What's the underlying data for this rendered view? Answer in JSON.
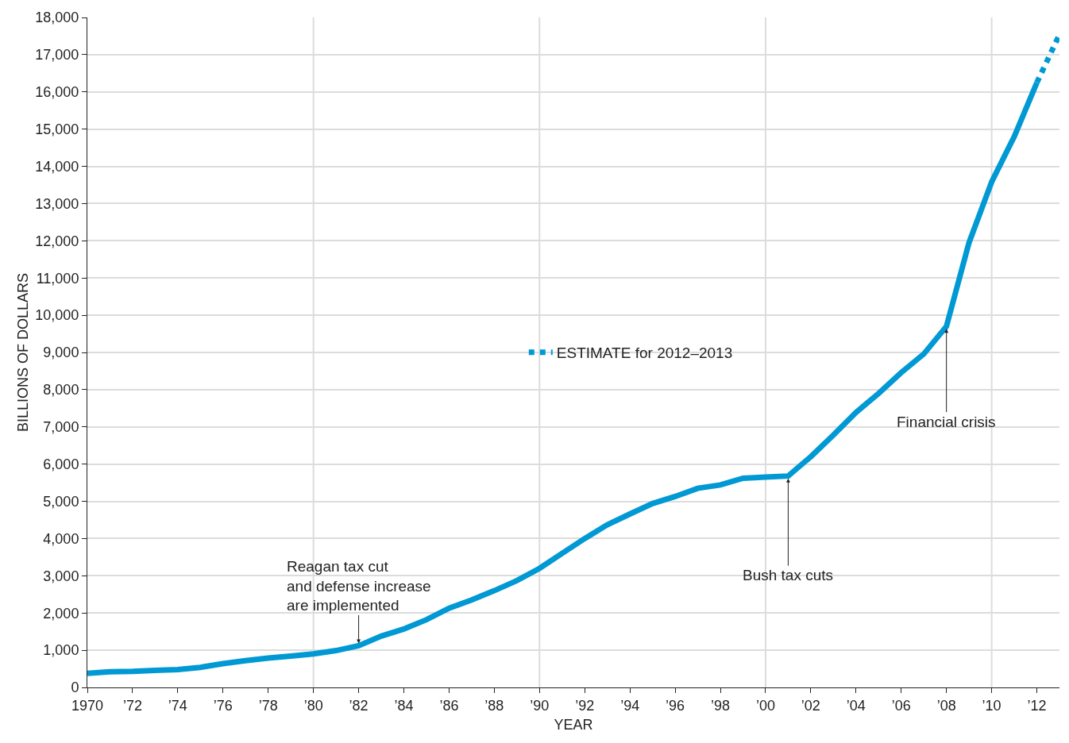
{
  "chart_data": {
    "type": "line",
    "xlabel": "YEAR",
    "ylabel": "BILLIONS OF DOLLARS",
    "xlim": [
      1970,
      2013
    ],
    "ylim": [
      0,
      18000
    ],
    "xticks": [
      1970,
      {
        "value": 1972,
        "label": "’72"
      },
      {
        "value": 1974,
        "label": "’74"
      },
      {
        "value": 1976,
        "label": "’76"
      },
      {
        "value": 1978,
        "label": "’78"
      },
      {
        "value": 1980,
        "label": "’80"
      },
      {
        "value": 1982,
        "label": "’82"
      },
      {
        "value": 1984,
        "label": "’84"
      },
      {
        "value": 1986,
        "label": "’86"
      },
      {
        "value": 1988,
        "label": "’88"
      },
      {
        "value": 1990,
        "label": "’90"
      },
      {
        "value": 1992,
        "label": "’92"
      },
      {
        "value": 1994,
        "label": "’94"
      },
      {
        "value": 1996,
        "label": "’96"
      },
      {
        "value": 1998,
        "label": "’98"
      },
      {
        "value": 2000,
        "label": "’00"
      },
      {
        "value": 2002,
        "label": "’02"
      },
      {
        "value": 2004,
        "label": "’04"
      },
      {
        "value": 2006,
        "label": "’06"
      },
      {
        "value": 2008,
        "label": "’08"
      },
      {
        "value": 2010,
        "label": "’10"
      },
      {
        "value": 2012,
        "label": "’12"
      }
    ],
    "yticks": [
      0,
      {
        "value": 1000,
        "label": "1,000"
      },
      {
        "value": 2000,
        "label": "2,000"
      },
      {
        "value": 3000,
        "label": "3,000"
      },
      {
        "value": 4000,
        "label": "4,000"
      },
      {
        "value": 5000,
        "label": "5,000"
      },
      {
        "value": 6000,
        "label": "6,000"
      },
      {
        "value": 7000,
        "label": "7,000"
      },
      {
        "value": 8000,
        "label": "8,000"
      },
      {
        "value": 9000,
        "label": "9,000"
      },
      {
        "value": 10000,
        "label": "10,000"
      },
      {
        "value": 11000,
        "label": "11,000"
      },
      {
        "value": 12000,
        "label": "12,000"
      },
      {
        "value": 13000,
        "label": "13,000"
      },
      {
        "value": 14000,
        "label": "14,000"
      },
      {
        "value": 15000,
        "label": "15,000"
      },
      {
        "value": 16000,
        "label": "16,000"
      },
      {
        "value": 17000,
        "label": "17,000"
      },
      {
        "value": 18000,
        "label": "18,000"
      }
    ],
    "grid": "y",
    "legend": "center",
    "marker": "none",
    "series": [
      {
        "color": "#0099d4",
        "line_style": "solid",
        "x": [
          1970,
          1971,
          1972,
          1973,
          1974,
          1975,
          1976,
          1977,
          1978,
          1979,
          1980,
          1981,
          1982,
          1983,
          1984,
          1985,
          1986,
          1987,
          1988,
          1989,
          1990,
          1991,
          1992,
          1993,
          1994,
          1995,
          1996,
          1997,
          1998,
          1999,
          2000,
          2001,
          2002,
          2003,
          2004,
          2005,
          2006,
          2007,
          2008,
          2009,
          2010,
          2011,
          2012
        ],
        "values": [
          380,
          420,
          430,
          460,
          480,
          540,
          640,
          720,
          790,
          840,
          900,
          990,
          1120,
          1380,
          1570,
          1820,
          2130,
          2350,
          2600,
          2870,
          3200,
          3600,
          4000,
          4370,
          4660,
          4940,
          5130,
          5350,
          5440,
          5620,
          5650,
          5680,
          6200,
          6780,
          7390,
          7900,
          8460,
          8960,
          9700,
          11950,
          13580,
          14800,
          16250
        ]
      },
      {
        "name": "ESTIMATE for 2012–2013",
        "color": "#0099d4",
        "line_style": "dotted",
        "x": [
          2012,
          2013
        ],
        "values": [
          16250,
          17540
        ]
      }
    ],
    "ref_lines": [
      {
        "axis": "x",
        "value": 1980,
        "color": "#dcdcdc"
      },
      {
        "axis": "x",
        "value": 1990,
        "color": "#dcdcdc"
      },
      {
        "axis": "x",
        "value": 2000,
        "color": "#dcdcdc"
      },
      {
        "axis": "x",
        "value": 2010,
        "color": "#dcdcdc"
      }
    ],
    "annotations": [
      {
        "text": "Reagan tax cut\nand defense increase\nare implemented",
        "x": 1982,
        "y": 1120
      },
      {
        "text": "Bush tax cuts",
        "x": 2001,
        "y": 5680
      },
      {
        "text": "Financial crisis",
        "x": 2008,
        "y": 9700
      }
    ]
  }
}
